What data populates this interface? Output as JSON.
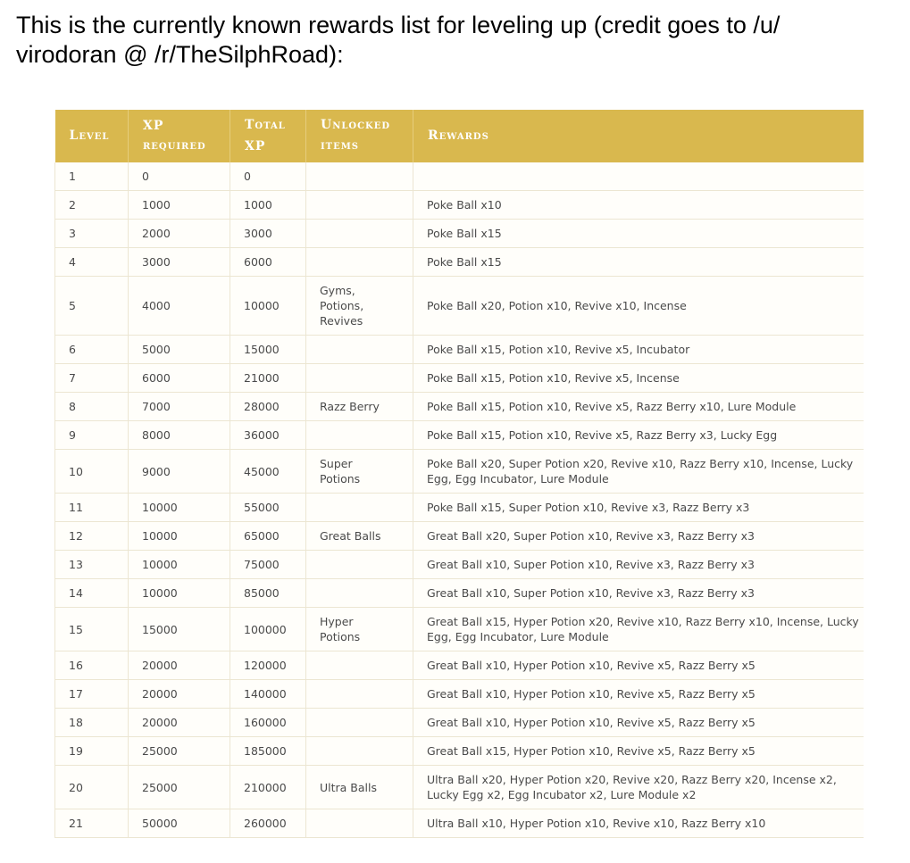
{
  "intro": {
    "line1": "This is the currently known rewards list for leveling up (credit goes to /u/",
    "line2": "virodoran @ /r/TheSilphRoad):"
  },
  "table": {
    "headers": {
      "level": {
        "cap": "L",
        "rest": "EVEL"
      },
      "xp_required": {
        "top": "XP",
        "bottom": "REQUIRED"
      },
      "total_xp": {
        "top_cap": "T",
        "top_rest": "OTAL",
        "bottom": "XP"
      },
      "unlocked_items": {
        "top_cap": "U",
        "top_rest": "NLOCKED",
        "bottom": "ITEMS"
      },
      "rewards": {
        "cap": "R",
        "rest": "EWARDS"
      }
    },
    "rows": [
      {
        "level": "1",
        "xp": "0",
        "total": "0",
        "unlocked": "",
        "rewards": ""
      },
      {
        "level": "2",
        "xp": "1000",
        "total": "1000",
        "unlocked": "",
        "rewards": "Poke Ball x10"
      },
      {
        "level": "3",
        "xp": "2000",
        "total": "3000",
        "unlocked": "",
        "rewards": "Poke Ball x15"
      },
      {
        "level": "4",
        "xp": "3000",
        "total": "6000",
        "unlocked": "",
        "rewards": "Poke Ball x15"
      },
      {
        "level": "5",
        "xp": "4000",
        "total": "10000",
        "unlocked": "Gyms, Potions, Revives",
        "rewards": "Poke Ball x20, Potion x10, Revive x10, Incense"
      },
      {
        "level": "6",
        "xp": "5000",
        "total": "15000",
        "unlocked": "",
        "rewards": "Poke Ball x15, Potion x10, Revive x5, Incubator"
      },
      {
        "level": "7",
        "xp": "6000",
        "total": "21000",
        "unlocked": "",
        "rewards": "Poke Ball x15, Potion x10, Revive x5, Incense"
      },
      {
        "level": "8",
        "xp": "7000",
        "total": "28000",
        "unlocked": "Razz Berry",
        "rewards": "Poke Ball x15, Potion x10, Revive x5, Razz Berry x10, Lure Module"
      },
      {
        "level": "9",
        "xp": "8000",
        "total": "36000",
        "unlocked": "",
        "rewards": "Poke Ball x15, Potion x10, Revive x5, Razz Berry x3, Lucky Egg"
      },
      {
        "level": "10",
        "xp": "9000",
        "total": "45000",
        "unlocked": "Super Potions",
        "rewards": "Poke Ball x20, Super Potion x20, Revive x10, Razz Berry x10, Incense, Lucky Egg, Egg Incubator, Lure Module"
      },
      {
        "level": "11",
        "xp": "10000",
        "total": "55000",
        "unlocked": "",
        "rewards": "Poke Ball x15, Super Potion x10, Revive x3, Razz Berry x3"
      },
      {
        "level": "12",
        "xp": "10000",
        "total": "65000",
        "unlocked": "Great Balls",
        "rewards": "Great Ball x20, Super Potion x10, Revive x3, Razz Berry x3"
      },
      {
        "level": "13",
        "xp": "10000",
        "total": "75000",
        "unlocked": "",
        "rewards": "Great Ball x10, Super Potion x10, Revive x3, Razz Berry x3"
      },
      {
        "level": "14",
        "xp": "10000",
        "total": "85000",
        "unlocked": "",
        "rewards": "Great Ball x10, Super Potion x10, Revive x3, Razz Berry x3"
      },
      {
        "level": "15",
        "xp": "15000",
        "total": "100000",
        "unlocked": "Hyper Potions",
        "rewards": "Great Ball x15, Hyper Potion x20, Revive x10, Razz Berry x10, Incense, Lucky Egg, Egg Incubator, Lure Module"
      },
      {
        "level": "16",
        "xp": "20000",
        "total": "120000",
        "unlocked": "",
        "rewards": "Great Ball x10, Hyper Potion x10, Revive x5, Razz Berry x5"
      },
      {
        "level": "17",
        "xp": "20000",
        "total": "140000",
        "unlocked": "",
        "rewards": "Great Ball x10, Hyper Potion x10, Revive x5, Razz Berry x5"
      },
      {
        "level": "18",
        "xp": "20000",
        "total": "160000",
        "unlocked": "",
        "rewards": "Great Ball x10, Hyper Potion x10, Revive x5, Razz Berry x5"
      },
      {
        "level": "19",
        "xp": "25000",
        "total": "185000",
        "unlocked": "",
        "rewards": "Great Ball x15, Hyper Potion x10, Revive x5, Razz Berry x5"
      },
      {
        "level": "20",
        "xp": "25000",
        "total": "210000",
        "unlocked": "Ultra Balls",
        "rewards": "Ultra Ball x20, Hyper Potion x20, Revive x20, Razz Berry x20, Incense x2, Lucky Egg x2, Egg Incubator x2, Lure Module x2"
      },
      {
        "level": "21",
        "xp": "50000",
        "total": "260000",
        "unlocked": "",
        "rewards": "Ultra Ball x10, Hyper Potion x10, Revive x10, Razz Berry x10"
      }
    ]
  }
}
